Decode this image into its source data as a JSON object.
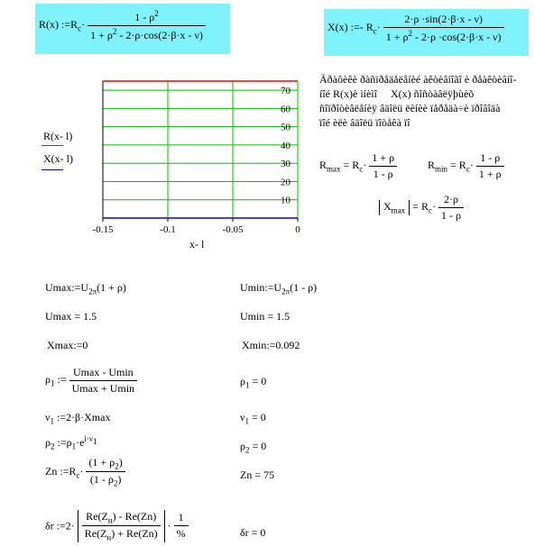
{
  "formulas": {
    "rx": {
      "lhs": "R(x) :=R",
      "sub": "c",
      "num_a": "1 - ",
      "num_b": "ρ",
      "num_exp": "2",
      "den_a": "1 + ρ",
      "den_exp": "2",
      "den_b": " - 2·ρ·cos(2·β·x - ν)"
    },
    "xx": {
      "lhs": "X(x) :=- R",
      "sub": "c",
      "num": "2·ρ ·sin(2·β·x - ν)",
      "den_a": "1 + ρ",
      "den_exp": "2",
      "den_b": " - 2·ρ ·cos(2·β·x - ν)"
    }
  },
  "note": {
    "line1": "Ãðàôèêè ðàñïðåäåëåíèé àêòèâíîãî è ðåàêòèâíî-",
    "line2_a": "íîé  R(x)è ìíèìî",
    "line2_b": "X(x) ñîñòàâëÿþùèõ",
    "line3": "ñîïðîòèâëåíèÿ    âäîëü ëèíèè  ïåðåäà÷è ïðîâîäà",
    "line4": "ïîé èëè âäîëü ïîòåêà ïî"
  },
  "extrema": {
    "rmax": {
      "lhs": "R",
      "sub": "max",
      "eq": " = R",
      "c": "c",
      "num": "1 + ρ",
      "den": "1 - ρ"
    },
    "rmin": {
      "lhs": "R",
      "sub": "min",
      "eq": " = R",
      "c": "c",
      "num": "1 - ρ",
      "den": "1 + ρ"
    },
    "xmax": {
      "lhs": "X",
      "sub": "max",
      "eq": " = R",
      "c": "c",
      "num": "2·ρ",
      "den": "1 - ρ"
    }
  },
  "chart_data": {
    "type": "line",
    "xlabel": "x- l",
    "x_ticks": [
      "-0.15",
      "-0.1",
      "-0.05",
      "0"
    ],
    "y_ticks": [
      "10",
      "20",
      "30",
      "40",
      "50",
      "60",
      "70"
    ],
    "xlim": [
      -0.15,
      0
    ],
    "ylim": [
      0,
      75
    ],
    "grid": true,
    "legend_placement": "left",
    "series": [
      {
        "name": "R(x- l)",
        "color": "#ff0000",
        "x": [
          -0.15,
          0
        ],
        "y": [
          75,
          75
        ]
      },
      {
        "name": "X(x- l)",
        "color": "#0000ff",
        "x": [
          -0.15,
          0
        ],
        "y": [
          0,
          0
        ]
      }
    ],
    "colors": {
      "grid": "#00c000",
      "axes": "#000000"
    }
  },
  "calc": {
    "umax_def": {
      "a": "Umax:=U",
      "sub": "2π",
      "b": "(1 + ρ)"
    },
    "umin_def": {
      "a": "Umin:=U",
      "sub": "2π",
      "b": "(1 - ρ)"
    },
    "umax_val": "Umax = 1.5",
    "umin_val": "Umin = 1.5",
    "xmax_def": "Xmax:=0",
    "xmin_def": "Xmin:=0.092",
    "rho1_def": {
      "a": "ρ",
      "sub": "1",
      "b": " :=",
      "num": "Umax - Umin",
      "den": "Umax + Umin"
    },
    "rho1_val": {
      "a": "ρ",
      "sub": "1",
      "b": " = 0"
    },
    "nu1_def": {
      "a": "ν",
      "sub": "1",
      "b": " :=2·β·Xmax"
    },
    "nu1_val": {
      "a": "ν",
      "sub": "1",
      "b": " = 0"
    },
    "rho2_def": {
      "a": "ρ",
      "sub": "2",
      "b": " :=ρ",
      "sub2": "1",
      "c": "·e",
      "exp": "i·ν",
      "expsub": "1"
    },
    "rho2_val": {
      "a": "ρ",
      "sub": "2",
      "b": " = 0"
    },
    "zn_def": {
      "a": "Zn :=R",
      "sub": "c",
      "num": "(1 + ρ",
      "numsub": "2",
      "num_end": ")",
      "den": "(1 - ρ",
      "densub": "2",
      "den_end": ")"
    },
    "zn_val": "Zn = 75",
    "dr_def": {
      "a": "δr :=2·",
      "num_a": "Re(Z",
      "num_sub": "н",
      "num_b": ") - Re(Zn)",
      "den_a": "Re(Z",
      "den_sub": "н",
      "den_b": ") + Re(Zn)",
      "tail": "·",
      "tnum": "1",
      "tden": "%"
    },
    "dr_val": "δr = 0"
  }
}
